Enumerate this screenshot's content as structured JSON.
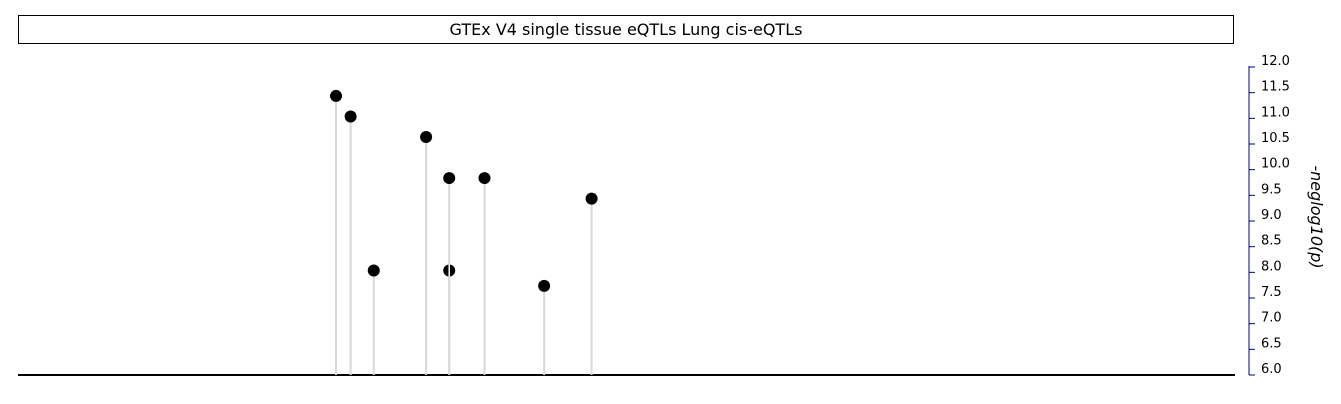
{
  "chart_data": {
    "type": "scatter",
    "style": "lollipop",
    "title": "GTEx V4 single tissue eQTLs Lung cis-eQTLs",
    "ylabel": "-neglog10(p)",
    "ylim": [
      6.0,
      12.0
    ],
    "yticks": [
      "6.0",
      "6.5",
      "7.0",
      "7.5",
      "8.0",
      "8.5",
      "9.0",
      "9.5",
      "10.0",
      "10.5",
      "11.0",
      "11.5",
      "12.0"
    ],
    "x_frac": [
      0.249,
      0.261,
      0.28,
      0.323,
      0.342,
      0.371,
      0.42,
      0.459,
      0.342
    ],
    "values": [
      11.3,
      10.9,
      7.9,
      10.5,
      9.7,
      9.7,
      7.6,
      9.3,
      7.9
    ],
    "half_marker": [
      false,
      false,
      false,
      false,
      false,
      false,
      false,
      false,
      true
    ]
  },
  "colors": {
    "stem": "#d8d8d8",
    "marker": "#000000",
    "tick": "#00008b"
  }
}
